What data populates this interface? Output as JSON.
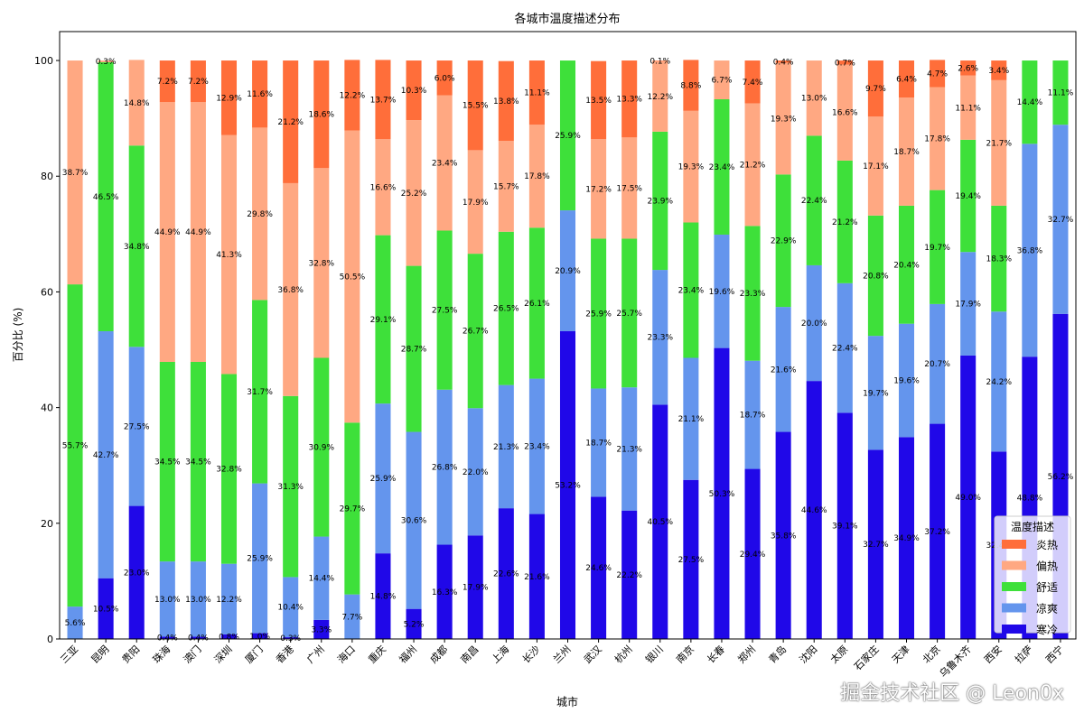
{
  "chart_data": {
    "type": "bar",
    "stacked": true,
    "title": "各城市温度描述分布",
    "xlabel": "城市",
    "ylabel": "百分比 (%)",
    "ylim": [
      0,
      105
    ],
    "yticks": [
      0,
      20,
      40,
      60,
      80,
      100
    ],
    "grid": false,
    "legend": {
      "title": "温度描述",
      "placement": "bottom-right",
      "order": [
        "炎热",
        "偏热",
        "舒适",
        "凉爽",
        "寒冷"
      ]
    },
    "categories": [
      "三亚",
      "昆明",
      "贵阳",
      "珠海",
      "澳门",
      "深圳",
      "厦门",
      "香港",
      "广州",
      "海口",
      "重庆",
      "福州",
      "成都",
      "南昌",
      "上海",
      "长沙",
      "兰州",
      "武汉",
      "杭州",
      "银川",
      "南京",
      "长春",
      "郑州",
      "青岛",
      "沈阳",
      "太原",
      "石家庄",
      "天津",
      "北京",
      "乌鲁木齐",
      "西安",
      "拉萨",
      "西宁"
    ],
    "series": [
      {
        "name": "寒冷",
        "color": "#2008e8",
        "values": [
          0,
          10.5,
          23.0,
          0.4,
          0.4,
          0.8,
          1.0,
          0.3,
          3.3,
          0,
          14.8,
          5.2,
          16.3,
          17.9,
          22.6,
          21.6,
          53.2,
          24.6,
          22.2,
          40.5,
          27.5,
          50.3,
          29.4,
          35.8,
          44.6,
          39.1,
          32.7,
          34.9,
          37.2,
          49.0,
          32.4,
          48.8,
          56.2
        ]
      },
      {
        "name": "凉爽",
        "color": "#6495ed",
        "values": [
          5.6,
          42.7,
          27.5,
          13.0,
          13.0,
          12.2,
          25.9,
          10.4,
          14.4,
          7.7,
          25.9,
          30.6,
          26.8,
          22.0,
          21.3,
          23.4,
          20.9,
          18.7,
          21.3,
          23.3,
          21.1,
          19.6,
          18.7,
          21.6,
          20.0,
          22.4,
          19.7,
          19.6,
          20.7,
          17.9,
          24.2,
          36.8,
          32.7
        ]
      },
      {
        "name": "舒适",
        "color": "#3ee03a",
        "values": [
          55.7,
          46.5,
          34.8,
          34.5,
          34.5,
          32.8,
          31.7,
          31.3,
          30.9,
          29.7,
          29.1,
          28.7,
          27.5,
          26.7,
          26.5,
          26.1,
          25.9,
          25.9,
          25.7,
          23.9,
          23.4,
          23.4,
          23.3,
          22.9,
          22.4,
          21.2,
          20.8,
          20.4,
          19.7,
          19.4,
          18.3,
          14.4,
          11.1
        ]
      },
      {
        "name": "偏热",
        "color": "#ffa882",
        "values": [
          38.7,
          0.3,
          14.8,
          44.9,
          44.9,
          41.3,
          29.8,
          36.8,
          32.8,
          50.5,
          16.6,
          25.2,
          23.4,
          17.9,
          15.7,
          17.8,
          0,
          17.2,
          17.5,
          12.2,
          19.3,
          6.7,
          21.2,
          19.3,
          13.0,
          16.6,
          17.1,
          18.7,
          17.8,
          11.1,
          21.7,
          0,
          0
        ]
      },
      {
        "name": "炎热",
        "color": "#ff6e3a",
        "values": [
          0,
          0,
          0,
          7.2,
          7.2,
          12.9,
          11.6,
          21.2,
          18.6,
          12.2,
          13.7,
          10.3,
          6.0,
          15.5,
          13.8,
          11.1,
          0,
          13.5,
          13.3,
          0.1,
          8.8,
          0,
          7.4,
          0.4,
          0,
          0.7,
          9.7,
          6.4,
          4.7,
          2.6,
          3.4,
          0,
          0
        ]
      }
    ]
  },
  "watermark": "掘金技术社区 @ Leon0x"
}
